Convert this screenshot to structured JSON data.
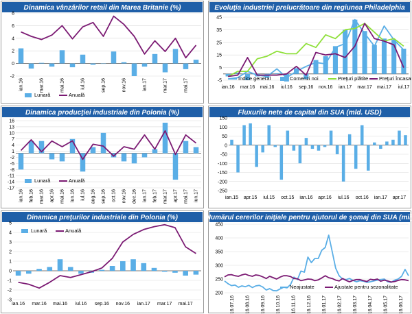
{
  "colors": {
    "title_bg": "#1f5fa8",
    "bar": "#5aaee6",
    "purple": "#7b1a73",
    "green": "#8fe03a",
    "light_blue": "#5aaee6",
    "dark_blue": "#1e6fc8",
    "grid": "#d9d9d9"
  },
  "chart_data": [
    {
      "id": "uk-retail",
      "type": "bar+line",
      "title": "Dinamica vânzărilor retail din Marea Britanie (%)",
      "ylim": [
        -2,
        8
      ],
      "yticks": [
        -2,
        0,
        2,
        4,
        6,
        8
      ],
      "categories": [
        "ian.16",
        "feb.16",
        "mar.16",
        "apr.16",
        "mai.16",
        "iun.16",
        "iul.16",
        "aug.16",
        "sep.16",
        "oct.16",
        "nov.16",
        "dec.16",
        "ian.17",
        "feb.17",
        "mar.17",
        "apr.17",
        "mai.17",
        "iun.17"
      ],
      "xlabels": [
        "ian.16",
        "mar.16",
        "mai.16",
        "iul.16",
        "sep.16",
        "nov.16",
        "ian.17",
        "mar.17",
        "mai.17"
      ],
      "series": [
        {
          "name": "Lunară",
          "kind": "bar",
          "values": [
            2.4,
            -0.8,
            0.1,
            -0.5,
            2.1,
            -0.6,
            1.4,
            -0.2,
            0.0,
            1.9,
            0.2,
            -2.0,
            -0.5,
            1.5,
            -1.4,
            2.3,
            -0.9,
            0.6
          ]
        },
        {
          "name": "Anuală",
          "kind": "line",
          "values": [
            5.0,
            4.3,
            3.8,
            4.5,
            6.0,
            3.9,
            5.8,
            6.5,
            4.3,
            7.5,
            6.2,
            4.3,
            1.5,
            3.6,
            1.9,
            4.0,
            0.9,
            2.9
          ]
        }
      ],
      "legend": [
        "Lunară",
        "Anuală"
      ]
    },
    {
      "id": "phila-industry",
      "type": "bar+line",
      "title": "Evoluţia industriei prelucrătoare din regiunea Philadelphia",
      "ylim": [
        -5,
        45
      ],
      "yticks": [
        -5,
        5,
        15,
        25,
        35,
        45
      ],
      "categories": [
        "ian.16",
        "feb.16",
        "mar.16",
        "apr.16",
        "mai.16",
        "iun.16",
        "iul.16",
        "aug.16",
        "sep.16",
        "oct.16",
        "nov.16",
        "dec.16",
        "ian.17",
        "feb.17",
        "mar.17",
        "apr.17",
        "mai.17",
        "iun.17",
        "iul.17"
      ],
      "xlabels": [
        "ian.16",
        "mar.16",
        "mai.16",
        "iul.16",
        "sep.16",
        "nov.16",
        "ian.17",
        "mar.17",
        "mai.17",
        "iul.17"
      ],
      "series": [
        {
          "name": "Comenzi noi",
          "kind": "bar",
          "values": [
            -2.0,
            1.0,
            -5.0,
            -2.0,
            -3.0,
            0.5,
            -6.0,
            4.5,
            -4.0,
            11.0,
            14.0,
            22.0,
            35.0,
            43.0,
            34.0,
            23.0,
            28.0,
            27.0,
            20.0
          ]
        },
        {
          "name": "Indice general",
          "kind": "line",
          "color": "light_blue",
          "values": [
            -4,
            -3,
            2,
            -1,
            -2,
            4,
            -3,
            2,
            6,
            9,
            8,
            21,
            24,
            43,
            32,
            22,
            38,
            27,
            19
          ]
        },
        {
          "name": "Preţuri plătite",
          "kind": "line",
          "color": "green",
          "values": [
            -2,
            2,
            2,
            12,
            14,
            18,
            16,
            16,
            24,
            21,
            31,
            28,
            35,
            36,
            40,
            33,
            26,
            28,
            22
          ]
        },
        {
          "name": "Preţuri încasate",
          "kind": "line",
          "color": "purple",
          "values": [
            -2,
            -1,
            13,
            -1,
            -1,
            -1,
            0,
            6,
            -1,
            17,
            15,
            16,
            13,
            22,
            40,
            28,
            26,
            23,
            5
          ]
        }
      ],
      "legend": [
        "Indice general",
        "Comenzi noi",
        "Preţuri plătite",
        "Preţuri încasate"
      ]
    },
    {
      "id": "pl-industrial-production",
      "type": "bar+line",
      "title": "Dinamica producţiei industriale din Polonia (%)",
      "ylim": [
        -17,
        16
      ],
      "yticks": [
        -17,
        -14,
        -11,
        -8,
        -5,
        -2,
        1,
        4,
        7,
        10,
        13,
        16
      ],
      "categories": [
        "ian.16",
        "feb.16",
        "mar.16",
        "apr.16",
        "mai.16",
        "iun.16",
        "iul.16",
        "aug.16",
        "sep.16",
        "oct.16",
        "nov.16",
        "dec.16",
        "ian.17",
        "feb.17",
        "mar.17",
        "apr.17",
        "mai.17",
        "iun.17"
      ],
      "xlabels": [
        "ian.16",
        "feb.16",
        "mar.16",
        "apr.16",
        "mai.16",
        "iun.16",
        "iul.16",
        "aug.16",
        "sep.16",
        "oct.16",
        "nov.16",
        "dec.16",
        "ian.17",
        "feb.17",
        "mar.17",
        "apr.17",
        "mai.17",
        "iun.17"
      ],
      "series": [
        {
          "name": "Lunară",
          "kind": "bar",
          "values": [
            -8,
            6,
            6,
            -3,
            -4,
            7,
            -9,
            3,
            10,
            -2,
            -4,
            -5,
            -2,
            2,
            15,
            -13,
            6,
            3
          ]
        },
        {
          "name": "Anuală",
          "kind": "line",
          "values": [
            1.4,
            6.6,
            0.7,
            6.0,
            3.2,
            6.1,
            -3.0,
            4.4,
            3.5,
            -1.4,
            3.2,
            2.0,
            9.0,
            2.0,
            11.0,
            -0.6,
            9.0,
            5.0
          ]
        }
      ],
      "legend": [
        "Lunară",
        "Anuală"
      ]
    },
    {
      "id": "us-capital-flows",
      "type": "bar",
      "title": "Fluxurile nete de capital din SUA (mld. USD)",
      "ylim": [
        -250,
        150
      ],
      "yticks": [
        -250,
        -200,
        -150,
        -100,
        -50,
        0,
        50,
        100,
        150
      ],
      "categories": [
        "ian.15",
        "feb.15",
        "mar.15",
        "apr.15",
        "mai.15",
        "iun.15",
        "iul.15",
        "aug.15",
        "sep.15",
        "oct.15",
        "nov.15",
        "dec.15",
        "ian.16",
        "feb.16",
        "mar.16",
        "apr.16",
        "mai.16",
        "iun.16",
        "iul.16",
        "aug.16",
        "sep.16",
        "oct.16",
        "nov.16",
        "dec.16",
        "ian.17",
        "feb.17",
        "mar.17",
        "apr.17",
        "mai.17"
      ],
      "xlabels": [
        "ian.15",
        "apr.15",
        "iul.15",
        "oct.15",
        "ian.16",
        "apr.16",
        "iul.16",
        "oct.16",
        "ian.17",
        "apr.17"
      ],
      "series": [
        {
          "name": "Flux net",
          "kind": "bar",
          "values": [
            30,
            -150,
            110,
            120,
            -120,
            -40,
            110,
            -10,
            -190,
            80,
            -30,
            -100,
            40,
            -20,
            -30,
            -10,
            80,
            -50,
            -200,
            60,
            -130,
            110,
            -140,
            15,
            -20,
            20,
            30,
            80,
            55
          ]
        }
      ]
    },
    {
      "id": "pl-producer-prices",
      "type": "bar+line",
      "title": "Dinamica preţurilor industriale din Polonia (%)",
      "ylim": [
        -3,
        5
      ],
      "yticks": [
        -3,
        -2,
        -1,
        0,
        1,
        2,
        3,
        4,
        5
      ],
      "categories": [
        "ian.16",
        "feb.16",
        "mar.16",
        "apr.16",
        "mai.16",
        "iun.16",
        "iul.16",
        "aug.16",
        "sep.16",
        "oct.16",
        "nov.16",
        "dec.16",
        "ian.17",
        "feb.17",
        "mar.17",
        "apr.17",
        "mai.17",
        "iun.17"
      ],
      "xlabels": [
        "ian.16",
        "mar.16",
        "mai.16",
        "iul.16",
        "sep.16",
        "nov.16",
        "ian.17",
        "mar.17",
        "mai.17"
      ],
      "series": [
        {
          "name": "Lunară",
          "kind": "bar",
          "values": [
            -0.5,
            -0.3,
            0.2,
            0.4,
            1.2,
            0.4,
            -0.3,
            -0.2,
            0.1,
            0.5,
            1.0,
            1.2,
            0.8,
            0.3,
            -0.1,
            -0.2,
            -0.5,
            -0.4
          ]
        },
        {
          "name": "Anuală",
          "kind": "line",
          "values": [
            -1.2,
            -1.4,
            -1.8,
            -1.2,
            -0.5,
            -0.7,
            -0.4,
            -0.1,
            0.3,
            1.3,
            3.0,
            3.8,
            4.3,
            4.6,
            4.8,
            4.5,
            2.5,
            1.8
          ]
        }
      ],
      "legend": [
        "Lunară",
        "Anuală"
      ]
    },
    {
      "id": "us-jobless-claims",
      "type": "line",
      "title": "Numărul cererilor iniţiale pentru ajutorul de şomaj din SUA (mii)",
      "ylim": [
        200,
        450
      ],
      "yticks": [
        200,
        250,
        300,
        350,
        400,
        450
      ],
      "xlabels": [
        "16.07.16",
        "16.08.16",
        "16.09.16",
        "16.10.16",
        "16.11.16",
        "16.12.16",
        "16.01.17",
        "16.02.17",
        "16.03.17",
        "16.04.17",
        "16.05.17",
        "16.06.17"
      ],
      "series": [
        {
          "name": "Neajustate",
          "kind": "line",
          "color": "light_blue",
          "values": [
            243,
            233,
            226,
            228,
            220,
            225,
            222,
            227,
            219,
            225,
            227,
            221,
            210,
            215,
            208,
            207,
            214,
            220,
            218,
            230,
            257,
            248,
            279,
            275,
            330,
            310,
            325,
            325,
            355,
            365,
            410,
            350,
            290,
            262,
            250,
            248,
            252,
            245,
            240,
            244,
            242,
            238,
            240,
            243,
            246,
            248,
            250,
            240,
            238,
            246,
            250,
            260,
            285,
            262
          ]
        },
        {
          "name": "Ajustate pentru sezonalitate",
          "kind": "line",
          "color": "purple",
          "values": [
            258,
            265,
            266,
            262,
            260,
            265,
            268,
            263,
            260,
            265,
            263,
            258,
            252,
            260,
            255,
            250,
            257,
            262,
            262,
            259,
            252,
            251,
            244,
            247,
            250,
            249,
            244,
            247,
            254,
            262,
            255,
            252,
            246,
            243,
            252,
            245,
            240,
            245,
            248,
            248,
            244,
            241,
            249,
            247,
            250,
            242,
            246,
            243,
            239,
            241,
            245,
            248,
            247,
            244
          ]
        }
      ],
      "legend": [
        "Neajustate",
        "Ajustate pentru sezonalitate"
      ]
    }
  ]
}
